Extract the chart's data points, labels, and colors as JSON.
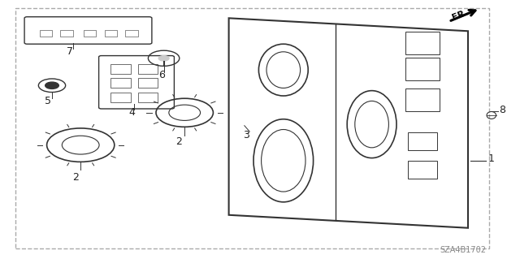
{
  "background_color": "#ffffff",
  "border_color": "#aaaaaa",
  "line_color": "#333333",
  "part_color": "#555555",
  "diagram_code": "SZA4B1702",
  "fr_label": "FR.",
  "label_fontsize": 9,
  "code_fontsize": 7
}
